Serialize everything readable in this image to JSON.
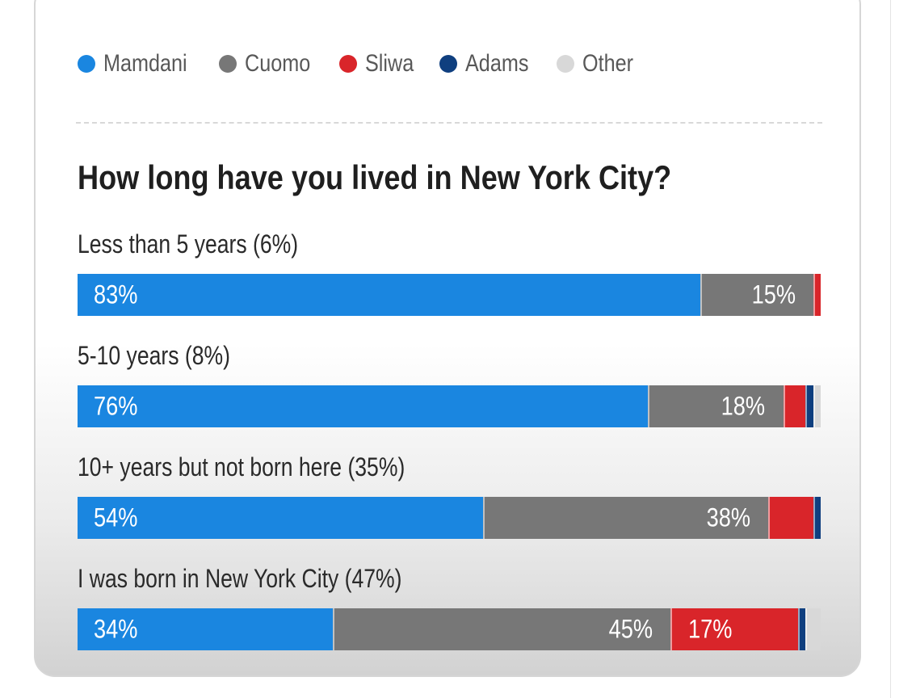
{
  "colors": {
    "Mamdani": "#1a86e0",
    "Cuomo": "#777777",
    "Sliwa": "#d9252a",
    "Adams": "#0f3f7f",
    "Other": "#d8d8d8"
  },
  "chart_data": {
    "type": "bar",
    "orientation": "horizontal-stacked",
    "title": "How long have you lived in New York City?",
    "legend_position": "top-left",
    "series_names": [
      "Mamdani",
      "Cuomo",
      "Sliwa",
      "Adams",
      "Other"
    ],
    "legend": [
      {
        "name": "Mamdani",
        "label": "Mamdani"
      },
      {
        "name": "Cuomo",
        "label": "Cuomo"
      },
      {
        "name": "Sliwa",
        "label": "Sliwa"
      },
      {
        "name": "Adams",
        "label": "Adams"
      },
      {
        "name": "Other",
        "label": "Other"
      }
    ],
    "categories": [
      "Less than 5 years (6%)",
      "5-10 years (8%)",
      "10+ years but not born here (35%)",
      "I was born in New York City (47%)"
    ],
    "rows": [
      {
        "label": "Less than 5 years (6%)",
        "values": {
          "Mamdani": 83,
          "Cuomo": 15,
          "Sliwa": 1,
          "Adams": 0,
          "Other": 0
        },
        "labels": {
          "Mamdani": "83%",
          "Cuomo": "15%"
        }
      },
      {
        "label": "5-10 years (8%)",
        "values": {
          "Mamdani": 76,
          "Cuomo": 18,
          "Sliwa": 3,
          "Adams": 1,
          "Other": 1
        },
        "labels": {
          "Mamdani": "76%",
          "Cuomo": "18%"
        }
      },
      {
        "label": "10+ years but not born here (35%)",
        "values": {
          "Mamdani": 54,
          "Cuomo": 38,
          "Sliwa": 6,
          "Adams": 1,
          "Other": 0
        },
        "labels": {
          "Mamdani": "54%",
          "Cuomo": "38%"
        }
      },
      {
        "label": "I was born in New York City (47%)",
        "values": {
          "Mamdani": 34,
          "Cuomo": 45,
          "Sliwa": 17,
          "Adams": 1,
          "Other": 2
        },
        "labels": {
          "Mamdani": "34%",
          "Cuomo": "45%",
          "Sliwa": "17%"
        }
      }
    ],
    "xlim": [
      0,
      100
    ]
  }
}
